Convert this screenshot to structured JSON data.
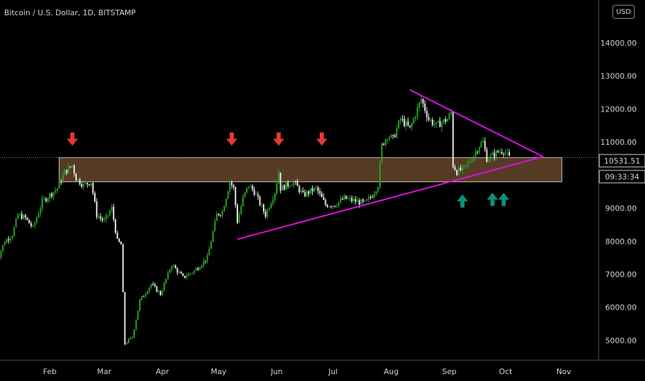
{
  "header": {
    "symbol_title": "Bitcoin / U.S. Dollar, 1D, BITSTAMP",
    "currency_button": "USD"
  },
  "price_scale": {
    "current_price": "10531.51",
    "countdown": "09:33:34"
  },
  "colors": {
    "background": "#000000",
    "up_candle": "#26a526",
    "down_candle": "#e8e8e8",
    "support_zone": "#6b4a2e",
    "trendline": "#e010e0",
    "arrow_down": "#e53935",
    "arrow_up": "#0f8f7c",
    "axis_text": "#d1d4dc"
  },
  "chart_data": {
    "type": "candlestick",
    "title": "Bitcoin / U.S. Dollar, 1D, BITSTAMP",
    "xlabel": "",
    "ylabel": "",
    "ylim": [
      4400,
      15300
    ],
    "y_ticks": [
      "5000.00",
      "6000.00",
      "7000.00",
      "8000.00",
      "9000.00",
      "10000.00",
      "11000.00",
      "12000.00",
      "13000.00",
      "14000.00"
    ],
    "x_ticks": [
      "Feb",
      "Mar",
      "Apr",
      "May",
      "Jun",
      "Jul",
      "Aug",
      "Sep",
      "Oct",
      "Nov"
    ],
    "x_tick_dates": [
      "2020-02-01",
      "2020-03-01",
      "2020-04-01",
      "2020-05-01",
      "2020-06-01",
      "2020-07-01",
      "2020-08-01",
      "2020-09-01",
      "2020-10-01",
      "2020-11-01"
    ],
    "date_range": [
      "2020-01-03",
      "2020-10-03"
    ],
    "path": [
      [
        "2020-01-03",
        7300
      ],
      [
        "2020-01-08",
        8000
      ],
      [
        "2020-01-12",
        8200
      ],
      [
        "2020-01-15",
        8800
      ],
      [
        "2020-01-19",
        8700
      ],
      [
        "2020-01-23",
        8400
      ],
      [
        "2020-01-28",
        9200
      ],
      [
        "2020-02-01",
        9400
      ],
      [
        "2020-02-05",
        9600
      ],
      [
        "2020-02-09",
        10100
      ],
      [
        "2020-02-13",
        10300
      ],
      [
        "2020-02-15",
        9900
      ],
      [
        "2020-02-19",
        9700
      ],
      [
        "2020-02-23",
        9800
      ],
      [
        "2020-02-26",
        8800
      ],
      [
        "2020-03-01",
        8600
      ],
      [
        "2020-03-05",
        9000
      ],
      [
        "2020-03-08",
        8000
      ],
      [
        "2020-03-10",
        7900
      ],
      [
        "2020-03-12",
        4900
      ],
      [
        "2020-03-16",
        5100
      ],
      [
        "2020-03-20",
        6200
      ],
      [
        "2020-03-26",
        6700
      ],
      [
        "2020-03-31",
        6400
      ],
      [
        "2020-04-06",
        7300
      ],
      [
        "2020-04-12",
        6900
      ],
      [
        "2020-04-18",
        7100
      ],
      [
        "2020-04-25",
        7500
      ],
      [
        "2020-04-30",
        8800
      ],
      [
        "2020-05-03",
        8900
      ],
      [
        "2020-05-07",
        9800
      ],
      [
        "2020-05-09",
        9600
      ],
      [
        "2020-05-11",
        8600
      ],
      [
        "2020-05-14",
        9300
      ],
      [
        "2020-05-17",
        9700
      ],
      [
        "2020-05-20",
        9500
      ],
      [
        "2020-05-26",
        8800
      ],
      [
        "2020-05-31",
        9500
      ],
      [
        "2020-06-02",
        10100
      ],
      [
        "2020-06-03",
        9600
      ],
      [
        "2020-06-10",
        9800
      ],
      [
        "2020-06-15",
        9400
      ],
      [
        "2020-06-22",
        9600
      ],
      [
        "2020-06-27",
        9100
      ],
      [
        "2020-07-02",
        9100
      ],
      [
        "2020-07-07",
        9300
      ],
      [
        "2020-07-14",
        9200
      ],
      [
        "2020-07-18",
        9150
      ],
      [
        "2020-07-22",
        9400
      ],
      [
        "2020-07-25",
        9700
      ],
      [
        "2020-07-27",
        10900
      ],
      [
        "2020-07-30",
        11200
      ],
      [
        "2020-08-02",
        11100
      ],
      [
        "2020-08-06",
        11700
      ],
      [
        "2020-08-11",
        11400
      ],
      [
        "2020-08-17",
        12300
      ],
      [
        "2020-08-21",
        11700
      ],
      [
        "2020-08-25",
        11500
      ],
      [
        "2020-08-31",
        11700
      ],
      [
        "2020-09-02",
        11900
      ],
      [
        "2020-09-03",
        10300
      ],
      [
        "2020-09-05",
        10100
      ],
      [
        "2020-09-09",
        10200
      ],
      [
        "2020-09-14",
        10600
      ],
      [
        "2020-09-17",
        10900
      ],
      [
        "2020-09-19",
        11000
      ],
      [
        "2020-09-21",
        10500
      ],
      [
        "2020-09-24",
        10600
      ],
      [
        "2020-09-27",
        10700
      ],
      [
        "2020-09-30",
        10750
      ],
      [
        "2020-10-03",
        10531
      ]
    ],
    "support_zone": {
      "from": 9800,
      "to": 10530,
      "start": "2020-02-06",
      "end": "2020-10-31"
    },
    "trendlines": [
      {
        "from": [
          "2020-05-11",
          8060
        ],
        "to": [
          "2020-10-21",
          10560
        ]
      },
      {
        "from": [
          "2020-08-11",
          12580
        ],
        "to": [
          "2020-10-21",
          10560
        ]
      }
    ],
    "annotations": [
      {
        "type": "arrow-down",
        "date": "2020-02-13",
        "y": 11060
      },
      {
        "type": "arrow-down",
        "date": "2020-05-08",
        "y": 11060
      },
      {
        "type": "arrow-down",
        "date": "2020-06-02",
        "y": 11060
      },
      {
        "type": "arrow-down",
        "date": "2020-06-25",
        "y": 11060
      },
      {
        "type": "arrow-up",
        "date": "2020-09-08",
        "y": 9250
      },
      {
        "type": "arrow-up",
        "date": "2020-09-24",
        "y": 9300
      },
      {
        "type": "arrow-up",
        "date": "2020-09-30",
        "y": 9300
      }
    ],
    "grid": false,
    "legend": "none"
  }
}
